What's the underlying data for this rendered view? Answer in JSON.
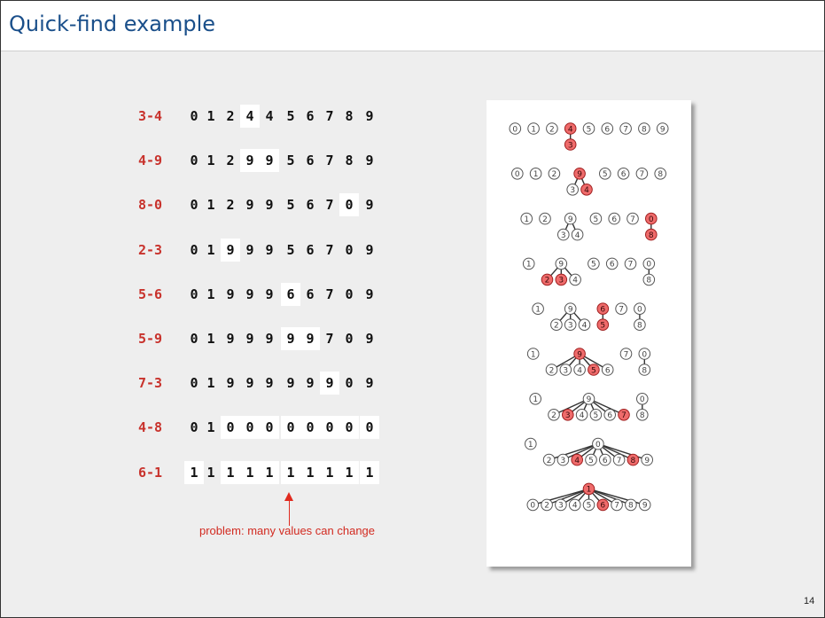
{
  "title": "Quick-find example",
  "page_number": "14",
  "annotation": "problem: many values can change",
  "colors": {
    "title": "#1a4f8a",
    "operation": "#c8322c",
    "node_highlight": "#ef6b6b",
    "arrow": "#e02a1e"
  },
  "steps": [
    {
      "op": "3-4",
      "ids": [
        "0",
        "1",
        "2",
        "4",
        "4",
        "5",
        "6",
        "7",
        "8",
        "9"
      ],
      "changed": [
        3
      ]
    },
    {
      "op": "4-9",
      "ids": [
        "0",
        "1",
        "2",
        "9",
        "9",
        "5",
        "6",
        "7",
        "8",
        "9"
      ],
      "changed": [
        3,
        4
      ]
    },
    {
      "op": "8-0",
      "ids": [
        "0",
        "1",
        "2",
        "9",
        "9",
        "5",
        "6",
        "7",
        "0",
        "9"
      ],
      "changed": [
        8
      ]
    },
    {
      "op": "2-3",
      "ids": [
        "0",
        "1",
        "9",
        "9",
        "9",
        "5",
        "6",
        "7",
        "0",
        "9"
      ],
      "changed": [
        2
      ]
    },
    {
      "op": "5-6",
      "ids": [
        "0",
        "1",
        "9",
        "9",
        "9",
        "6",
        "6",
        "7",
        "0",
        "9"
      ],
      "changed": [
        5
      ]
    },
    {
      "op": "5-9",
      "ids": [
        "0",
        "1",
        "9",
        "9",
        "9",
        "9",
        "9",
        "7",
        "0",
        "9"
      ],
      "changed": [
        5,
        6
      ]
    },
    {
      "op": "7-3",
      "ids": [
        "0",
        "1",
        "9",
        "9",
        "9",
        "9",
        "9",
        "9",
        "0",
        "9"
      ],
      "changed": [
        7
      ]
    },
    {
      "op": "4-8",
      "ids": [
        "0",
        "1",
        "0",
        "0",
        "0",
        "0",
        "0",
        "0",
        "0",
        "0"
      ],
      "changed": [
        2,
        3,
        4,
        5,
        6,
        7,
        8,
        9
      ]
    },
    {
      "op": "6-1",
      "ids": [
        "1",
        "1",
        "1",
        "1",
        "1",
        "1",
        "1",
        "1",
        "1",
        "1"
      ],
      "changed": [
        0,
        2,
        3,
        4,
        5,
        6,
        7,
        8,
        9
      ]
    }
  ],
  "forest_steps": [
    {
      "nodes": [
        {
          "id": "0"
        },
        {
          "id": "1"
        },
        {
          "id": "2"
        },
        {
          "id": "4",
          "hl": true
        },
        {
          "id": "5"
        },
        {
          "id": "6"
        },
        {
          "id": "7"
        },
        {
          "id": "8"
        },
        {
          "id": "9"
        },
        {
          "id": "3",
          "hl": true,
          "parent": "4"
        }
      ]
    },
    {
      "nodes": [
        {
          "id": "0"
        },
        {
          "id": "1"
        },
        {
          "id": "2"
        },
        {
          "id": "9",
          "hl": true
        },
        {
          "id": "5"
        },
        {
          "id": "6"
        },
        {
          "id": "7"
        },
        {
          "id": "8"
        },
        {
          "id": "3",
          "parent": "9"
        },
        {
          "id": "4",
          "hl": true,
          "parent": "9"
        }
      ]
    },
    {
      "nodes": [
        {
          "id": "1"
        },
        {
          "id": "2"
        },
        {
          "id": "9"
        },
        {
          "id": "5"
        },
        {
          "id": "6"
        },
        {
          "id": "7"
        },
        {
          "id": "0",
          "hl": true
        },
        {
          "id": "3",
          "parent": "9"
        },
        {
          "id": "4",
          "parent": "9"
        },
        {
          "id": "8",
          "hl": true,
          "parent": "0"
        }
      ]
    },
    {
      "nodes": [
        {
          "id": "1"
        },
        {
          "id": "9"
        },
        {
          "id": "5"
        },
        {
          "id": "6"
        },
        {
          "id": "7"
        },
        {
          "id": "0"
        },
        {
          "id": "2",
          "hl": true,
          "parent": "9"
        },
        {
          "id": "3",
          "hl": true,
          "parent": "9"
        },
        {
          "id": "4",
          "parent": "9"
        },
        {
          "id": "8",
          "parent": "0"
        }
      ]
    },
    {
      "nodes": [
        {
          "id": "1"
        },
        {
          "id": "9"
        },
        {
          "id": "6",
          "hl": true
        },
        {
          "id": "7"
        },
        {
          "id": "0"
        },
        {
          "id": "2",
          "parent": "9"
        },
        {
          "id": "3",
          "parent": "9"
        },
        {
          "id": "4",
          "parent": "9"
        },
        {
          "id": "5",
          "hl": true,
          "parent": "6"
        },
        {
          "id": "8",
          "parent": "0"
        }
      ]
    },
    {
      "nodes": [
        {
          "id": "1"
        },
        {
          "id": "9",
          "hl": true
        },
        {
          "id": "7"
        },
        {
          "id": "0"
        },
        {
          "id": "2",
          "parent": "9"
        },
        {
          "id": "3",
          "parent": "9"
        },
        {
          "id": "4",
          "parent": "9"
        },
        {
          "id": "5",
          "hl": true,
          "parent": "9"
        },
        {
          "id": "6",
          "parent": "9"
        },
        {
          "id": "8",
          "parent": "0"
        }
      ]
    },
    {
      "nodes": [
        {
          "id": "1"
        },
        {
          "id": "9"
        },
        {
          "id": "0"
        },
        {
          "id": "2",
          "parent": "9"
        },
        {
          "id": "3",
          "hl": true,
          "parent": "9"
        },
        {
          "id": "4",
          "parent": "9"
        },
        {
          "id": "5",
          "parent": "9"
        },
        {
          "id": "6",
          "parent": "9"
        },
        {
          "id": "7",
          "hl": true,
          "parent": "9"
        },
        {
          "id": "8",
          "parent": "0"
        }
      ]
    },
    {
      "nodes": [
        {
          "id": "1"
        },
        {
          "id": "0"
        },
        {
          "id": "2",
          "parent": "0"
        },
        {
          "id": "3",
          "parent": "0"
        },
        {
          "id": "4",
          "hl": true,
          "parent": "0"
        },
        {
          "id": "5",
          "parent": "0"
        },
        {
          "id": "6",
          "parent": "0"
        },
        {
          "id": "7",
          "parent": "0"
        },
        {
          "id": "8",
          "hl": true,
          "parent": "0"
        },
        {
          "id": "9",
          "parent": "0"
        }
      ]
    },
    {
      "nodes": [
        {
          "id": "1",
          "hl": true
        },
        {
          "id": "0",
          "parent": "1"
        },
        {
          "id": "2",
          "parent": "1"
        },
        {
          "id": "3",
          "parent": "1"
        },
        {
          "id": "4",
          "parent": "1"
        },
        {
          "id": "5",
          "parent": "1"
        },
        {
          "id": "6",
          "hl": true,
          "parent": "1"
        },
        {
          "id": "7",
          "parent": "1"
        },
        {
          "id": "8",
          "parent": "1"
        },
        {
          "id": "9",
          "parent": "1"
        }
      ]
    }
  ]
}
